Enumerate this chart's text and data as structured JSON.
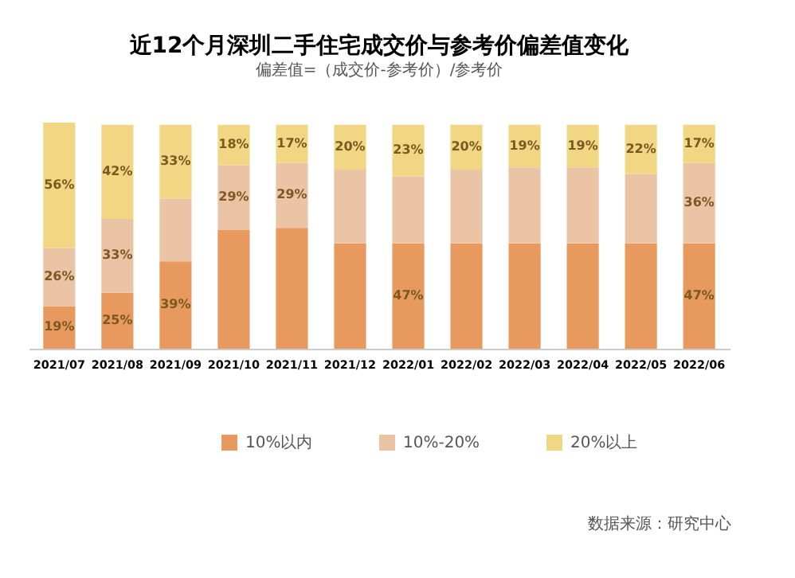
{
  "chart_data": {
    "type": "bar",
    "title": "近12个月深圳二手住宅成交价与参考价偏差值变化",
    "subtitle": "偏差值=（成交价-参考价）/参考价",
    "categories": [
      "2021/07",
      "2021/08",
      "2021/09",
      "2021/10",
      "2021/11",
      "2021/12",
      "2022/01",
      "2022/02",
      "2022/03",
      "2022/04",
      "2022/05",
      "2022/06"
    ],
    "stacked": true,
    "series": [
      {
        "name": "10%以内",
        "color": "#e8995e",
        "values": [
          19,
          25,
          39,
          53,
          54,
          47,
          47,
          47,
          47,
          47,
          47,
          47
        ],
        "value_labels": [
          "19%",
          "25%",
          "39%",
          null,
          null,
          null,
          "47%",
          null,
          null,
          null,
          null,
          "47%"
        ]
      },
      {
        "name": "10%-20%",
        "color": "#ebc4a6",
        "values": [
          26,
          33,
          28,
          29,
          29,
          33,
          30,
          33,
          34,
          34,
          31,
          36
        ],
        "value_labels": [
          "26%",
          "33%",
          null,
          "29%",
          "29%",
          null,
          null,
          null,
          null,
          null,
          null,
          "36%"
        ]
      },
      {
        "name": "20%以上",
        "color": "#f1d683",
        "values": [
          56,
          42,
          33,
          18,
          17,
          20,
          23,
          20,
          19,
          19,
          22,
          17
        ],
        "value_labels": [
          "56%",
          "42%",
          "33%",
          "18%",
          "17%",
          "20%",
          "23%",
          "20%",
          "19%",
          "19%",
          "22%",
          "17%"
        ]
      }
    ],
    "legend": "bottom",
    "annotations": [
      "数据来源：研究中心"
    ]
  }
}
